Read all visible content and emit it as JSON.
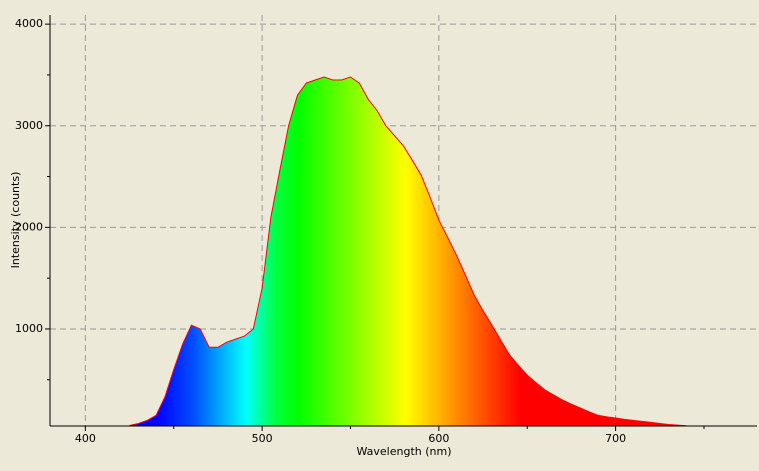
{
  "chart_data": {
    "type": "area",
    "x_label": "Wavelength (nm)",
    "y_label": "Intensity (counts)",
    "x": [
      425,
      430,
      435,
      440,
      445,
      450,
      455,
      460,
      465,
      470,
      475,
      480,
      485,
      490,
      495,
      500,
      505,
      510,
      515,
      520,
      525,
      530,
      535,
      540,
      545,
      550,
      555,
      560,
      565,
      570,
      575,
      580,
      585,
      590,
      595,
      600,
      605,
      610,
      615,
      620,
      625,
      630,
      635,
      640,
      645,
      650,
      655,
      660,
      665,
      670,
      675,
      680,
      685,
      690,
      695,
      700,
      705,
      710,
      715,
      720,
      725,
      730,
      735,
      740
    ],
    "series": [
      {
        "name": "Intensity",
        "color": "#ff0000",
        "values": [
          50,
          70,
          100,
          150,
          330,
          600,
          850,
          1038,
          1000,
          822,
          820,
          870,
          900,
          930,
          1000,
          1400,
          2100,
          2560,
          3000,
          3300,
          3420,
          3450,
          3480,
          3450,
          3450,
          3480,
          3420,
          3260,
          3150,
          3000,
          2900,
          2800,
          2660,
          2513,
          2300,
          2070,
          1900,
          1726,
          1530,
          1333,
          1180,
          1038,
          890,
          743,
          640,
          546,
          470,
          400,
          350,
          300,
          260,
          222,
          185,
          150,
          135,
          124,
          110,
          100,
          90,
          80,
          70,
          60,
          54,
          48
        ]
      }
    ],
    "xlim": [
      380,
      780
    ],
    "xticks": [
      400,
      500,
      600,
      700
    ],
    "xminorticks": [
      450,
      550,
      650,
      750
    ],
    "ylim": [
      45,
      4090
    ],
    "yticks": [
      1000,
      2000,
      3000,
      4000
    ],
    "yminorticks": [
      500,
      1500,
      2500,
      3500
    ],
    "grid": true
  }
}
